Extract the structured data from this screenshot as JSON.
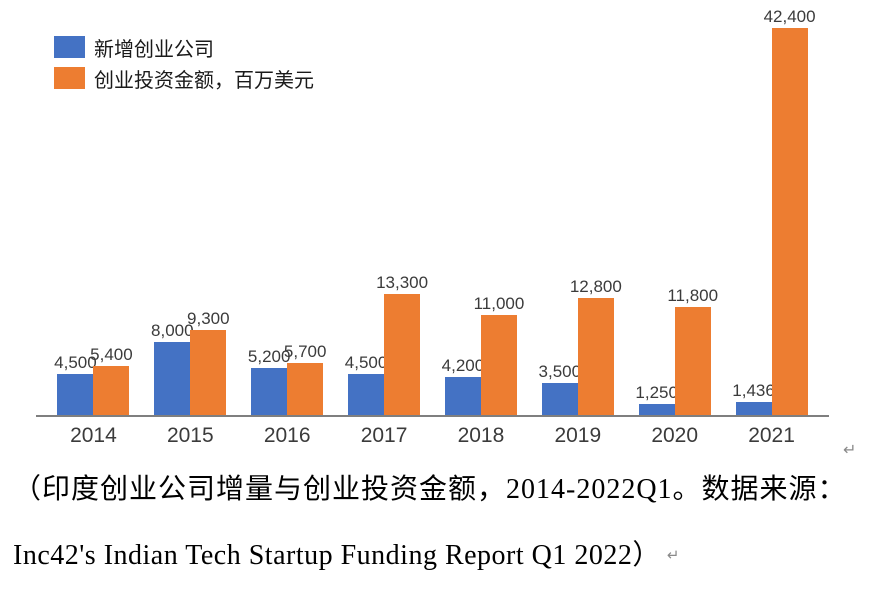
{
  "chart_data": {
    "type": "bar",
    "title": "",
    "categories": [
      "2014",
      "2015",
      "2016",
      "2017",
      "2018",
      "2019",
      "2020",
      "2021"
    ],
    "series": [
      {
        "name": "新增创业公司",
        "color": "#4472C4",
        "values": [
          4500,
          8000,
          5200,
          4500,
          4200,
          3500,
          1250,
          1436
        ]
      },
      {
        "name": "创业投资金额，百万美元",
        "color": "#ED7D31",
        "values": [
          5400,
          9300,
          5700,
          13300,
          11000,
          12800,
          11800,
          42400
        ]
      }
    ],
    "xlabel": "",
    "ylabel": "",
    "ylim": [
      0,
      42400
    ],
    "grid": false,
    "legend_position": "top-left",
    "data_labels": "comma-thousands"
  },
  "axis": {
    "line_color": "#7f7f7f"
  },
  "caption": {
    "line1": "（印度创业公司增量与创业投资金额，2014-2022Q1。数据来源：",
    "line2": "Inc42's Indian Tech Startup Funding Report Q1 2022）"
  },
  "marks": {
    "paragraph_mark": "↵"
  }
}
